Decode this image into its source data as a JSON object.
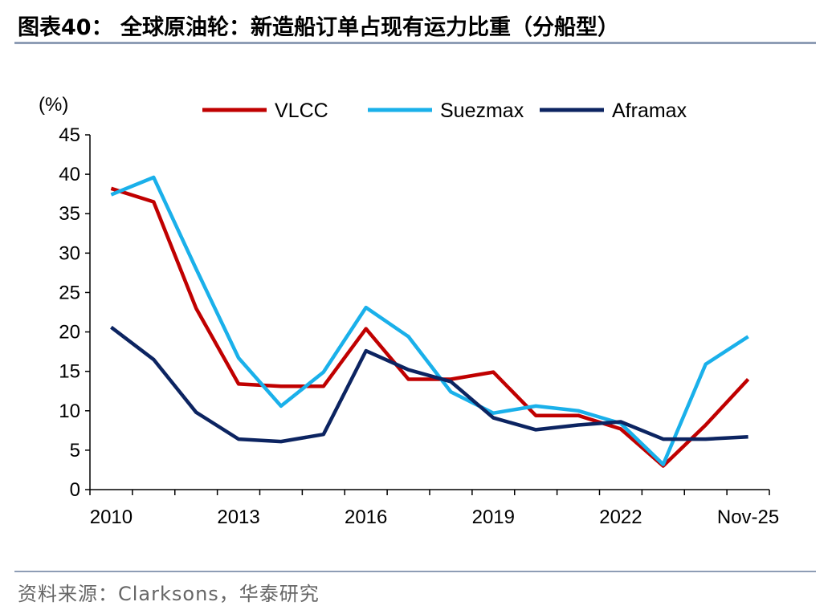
{
  "title": "图表40：  全球原油轮：新造船订单占现有运力比重（分船型）",
  "source": "资料来源：Clarksons，华泰研究",
  "chart_data": {
    "type": "line",
    "ylabel": "(%)",
    "ylim": [
      0,
      45
    ],
    "yticks": [
      0,
      5,
      10,
      15,
      20,
      25,
      30,
      35,
      40,
      45
    ],
    "x": [
      "2010",
      "2011",
      "2012",
      "2013",
      "2014",
      "2015",
      "2016",
      "2017",
      "2018",
      "2019",
      "2020",
      "2021",
      "2022",
      "2023",
      "2024",
      "Nov-25"
    ],
    "xtick_labels": [
      "2010",
      "2013",
      "2016",
      "2019",
      "2022",
      "Nov-25"
    ],
    "legend_position": "top",
    "grid": false,
    "series": [
      {
        "name": "VLCC",
        "color": "#c00000",
        "values": [
          38.2,
          36.5,
          23.0,
          13.4,
          13.1,
          13.1,
          20.4,
          14.0,
          14.0,
          14.9,
          9.4,
          9.4,
          7.7,
          3.0,
          8.2,
          14.0
        ]
      },
      {
        "name": "Suezmax",
        "color": "#1ab0ea",
        "values": [
          37.4,
          39.6,
          28.0,
          16.7,
          10.6,
          14.9,
          23.1,
          19.4,
          12.4,
          9.7,
          10.6,
          10.0,
          8.4,
          3.2,
          15.9,
          19.4
        ]
      },
      {
        "name": "Aframax",
        "color": "#0c2461",
        "values": [
          20.6,
          16.5,
          9.8,
          6.4,
          6.1,
          7.0,
          17.6,
          15.2,
          13.7,
          9.1,
          7.6,
          8.2,
          8.6,
          6.4,
          6.4,
          6.7
        ]
      }
    ]
  }
}
